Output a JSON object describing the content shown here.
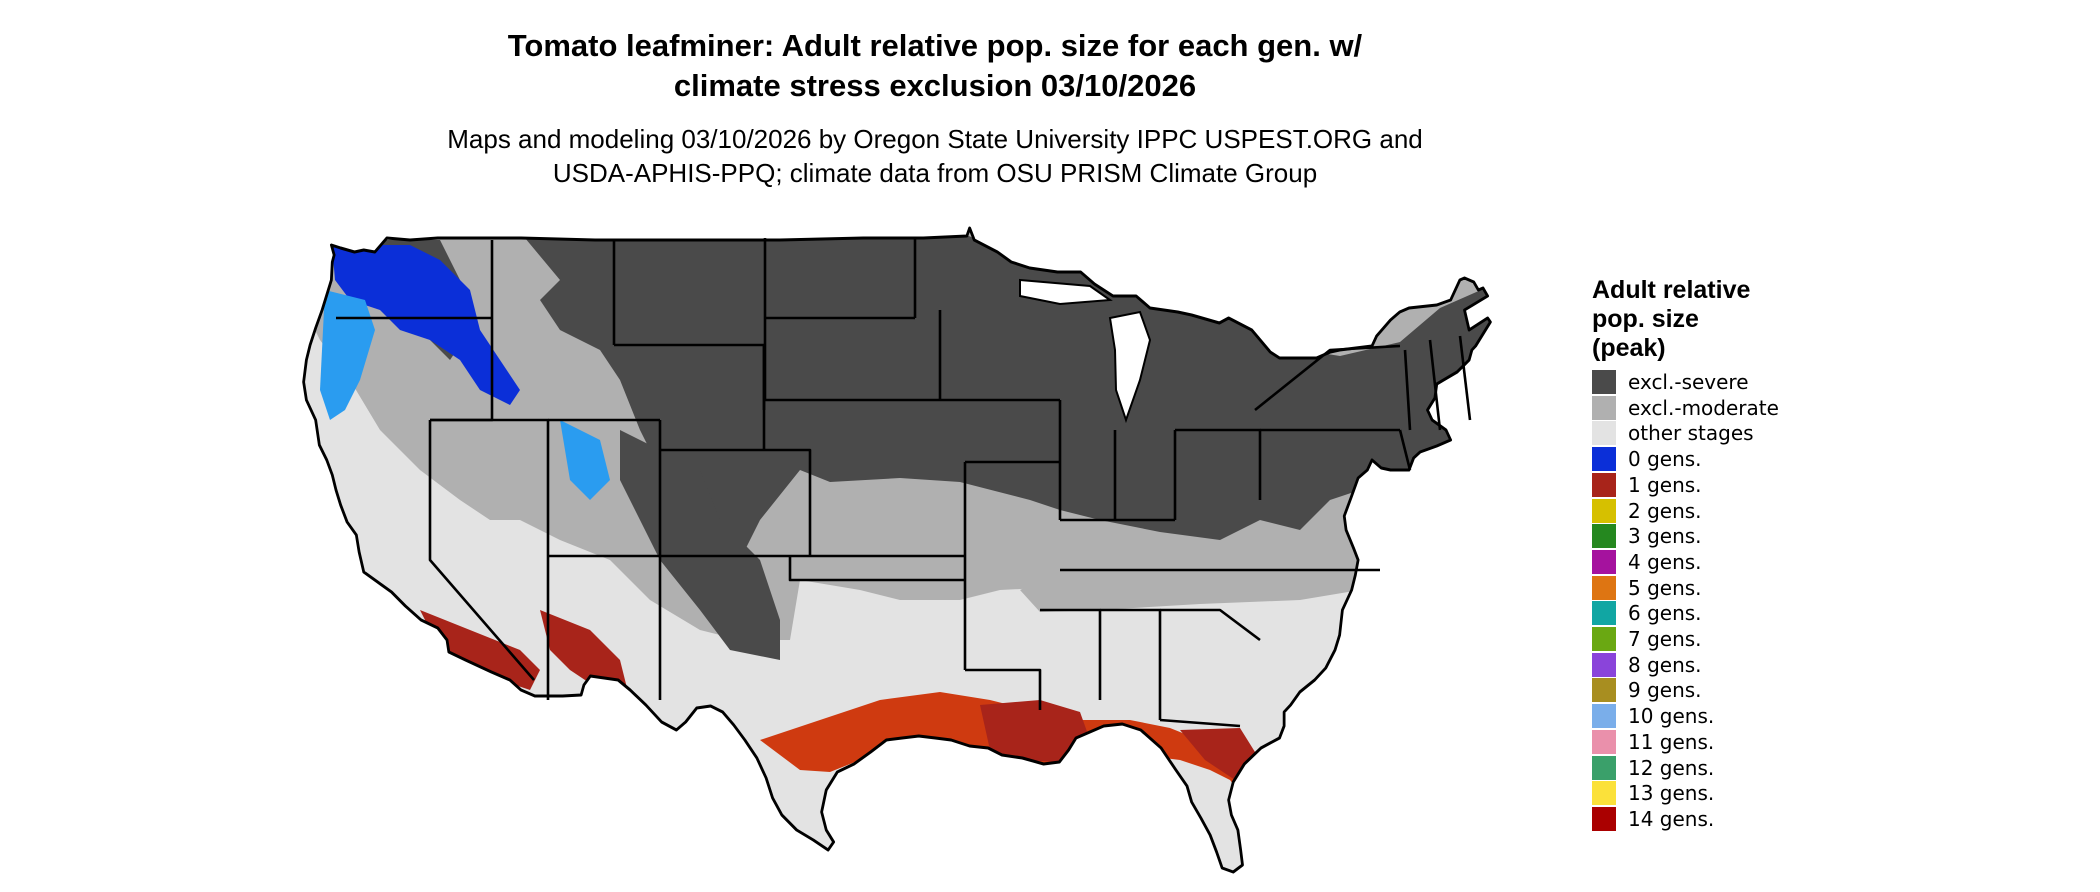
{
  "title": {
    "line1": "Tomato leafminer: Adult relative pop. size for each gen. w/",
    "line2": "climate stress exclusion 03/10/2026"
  },
  "subtitle": {
    "line1": "Maps and modeling 03/10/2026 by Oregon State University IPPC USPEST.ORG and",
    "line2": "USDA-APHIS-PPQ; climate data from OSU PRISM Climate Group"
  },
  "legend": {
    "title_lines": [
      "Adult relative",
      "pop. size",
      "(peak)"
    ],
    "items": [
      {
        "label": "excl.-severe",
        "color": "#4a4a4a"
      },
      {
        "label": "excl.-moderate",
        "color": "#b0b0b0"
      },
      {
        "label": "other stages",
        "color": "#e3e3e3"
      },
      {
        "label": "0 gens.",
        "color": "#0b2fd8"
      },
      {
        "label": "1 gens.",
        "color": "#a8241a"
      },
      {
        "label": "2 gens.",
        "color": "#d6c000"
      },
      {
        "label": "3 gens.",
        "color": "#25881f"
      },
      {
        "label": "4 gens.",
        "color": "#a5129e"
      },
      {
        "label": "5 gens.",
        "color": "#de7512"
      },
      {
        "label": "6 gens.",
        "color": "#11a6a3"
      },
      {
        "label": "7 gens.",
        "color": "#6aa812"
      },
      {
        "label": "8 gens.",
        "color": "#8a44da"
      },
      {
        "label": "9 gens.",
        "color": "#a88e20"
      },
      {
        "label": "10 gens.",
        "color": "#7aaeea"
      },
      {
        "label": "11 gens.",
        "color": "#ea90ab"
      },
      {
        "label": "12 gens.",
        "color": "#3aa06a"
      },
      {
        "label": "13 gens.",
        "color": "#fbe13a"
      },
      {
        "label": "14 gens.",
        "color": "#aa0000"
      }
    ]
  },
  "map_colors": {
    "severe": "#4a4a4a",
    "moderate": "#b0b0b0",
    "other": "#e3e3e3",
    "gen0": "#0b2fd8",
    "gen0_light": "#2a9cf0",
    "gen1": "#a8241a",
    "gen1_bright": "#cf3a10",
    "border": "#000000"
  }
}
